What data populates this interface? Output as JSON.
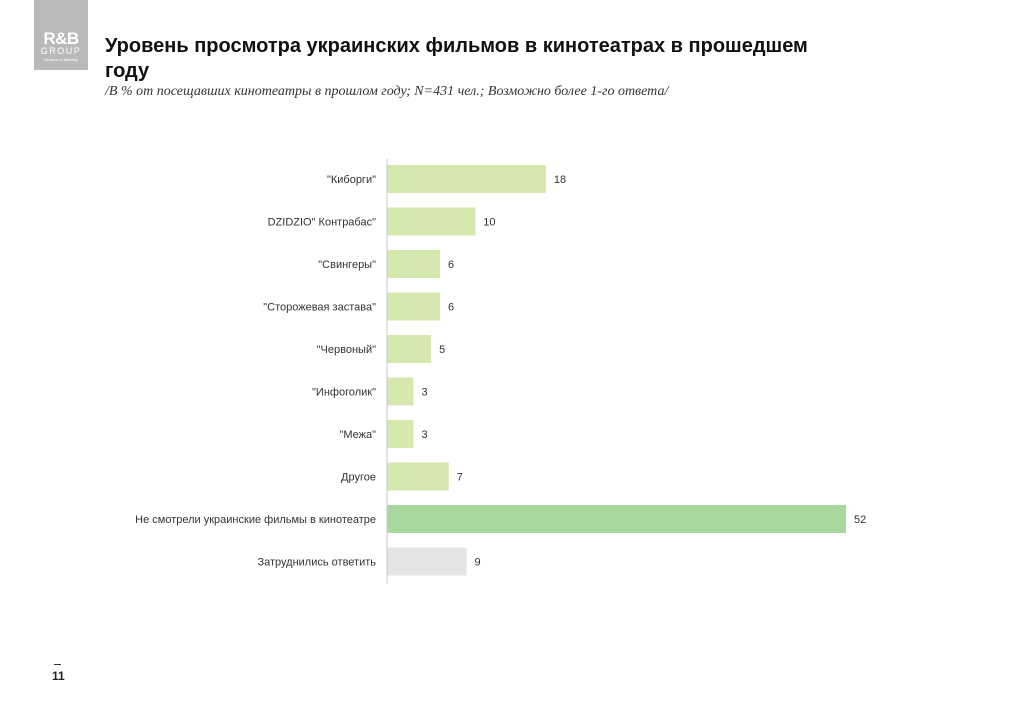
{
  "logo": {
    "line1": "R&B",
    "line2": "GROUP",
    "line3": "Research & Branding"
  },
  "header": {
    "title": "Уровень просмотра украинских фильмов в кинотеатрах в прошедшем году",
    "subtitle": "/В % от посещавших кинотеатры в прошлом году; N=431 чел.; Возможно более 1-го ответа/"
  },
  "page_number": "11",
  "colors": {
    "bar_default": "#d5e8ae",
    "bar_highlight": "#a8d89e",
    "bar_neutral": "#e3e4e5",
    "axis": "#c8c8c8"
  },
  "chart_data": {
    "type": "bar",
    "orientation": "horizontal",
    "categories": [
      "\"Киборги\"",
      "DZIDZIO\" Контрабас\"",
      "\"Свингеры\"",
      "\"Сторожевая застава\"",
      "\"Червоный\"",
      "\"Инфоголик\"",
      "\"Межа\"",
      "Другое",
      "Не смотрели украинские фильмы в кинотеатре",
      "Затруднились ответить"
    ],
    "values": [
      18,
      10,
      6,
      6,
      5,
      3,
      3,
      7,
      52,
      9
    ],
    "value_labels": [
      "18",
      "10",
      "6",
      "6",
      "5",
      "3",
      "3",
      "7",
      "52",
      "9"
    ],
    "bar_styles": [
      "default",
      "default",
      "default",
      "default",
      "default",
      "default",
      "default",
      "default",
      "highlight",
      "neutral"
    ],
    "title": "",
    "xlabel": "",
    "ylabel": "",
    "xlim": [
      0,
      52
    ],
    "grid": false,
    "legend": "none"
  }
}
